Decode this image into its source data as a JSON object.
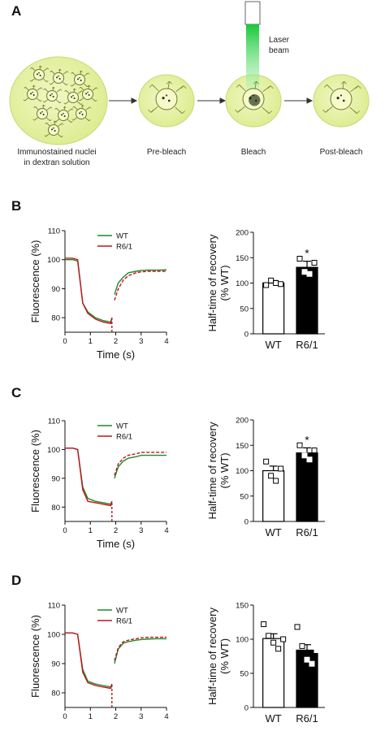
{
  "panel_a": {
    "letter": "A",
    "laser_label": [
      "Laser",
      "beam"
    ],
    "stages": [
      {
        "label": [
          "Immunostained nuclei",
          "in dextran solution"
        ]
      },
      {
        "label": [
          "Pre-bleach"
        ]
      },
      {
        "label": [
          "Bleach"
        ]
      },
      {
        "label": [
          "Post-bleach"
        ]
      }
    ]
  },
  "colors": {
    "wt": "#1e8a2a",
    "r61": "#c0141c",
    "blob": "#e8f2a8",
    "blob_edge": "#c6dc6e",
    "laser": "#2fd24a"
  },
  "chart_data": [
    {
      "panel": "B",
      "type": "line",
      "ylabel": "Fluorescence (%)",
      "xlabel": "Time (s)",
      "xlim": [
        0,
        4
      ],
      "ylim": [
        75,
        110
      ],
      "xticks": [
        "0",
        "1",
        "2",
        "3",
        "4"
      ],
      "yticks": [
        "80",
        "90",
        "100",
        "110"
      ],
      "grid": false,
      "legend": "top-left",
      "series": [
        {
          "name": "WT",
          "x": [
            0,
            0.3,
            0.5,
            0.7,
            0.9,
            1.2,
            1.5,
            1.8,
            1.85,
            1.95,
            2.1,
            2.3,
            2.5,
            2.8,
            3.0,
            3.3,
            3.6,
            4.0
          ],
          "y": [
            100,
            100,
            99.5,
            85,
            82,
            80,
            79,
            78.5,
            80,
            88,
            92,
            94,
            95.5,
            96,
            96.3,
            96.4,
            96.4,
            96.5
          ]
        },
        {
          "name": "R6/1",
          "x": [
            0,
            0.3,
            0.5,
            0.7,
            0.9,
            1.2,
            1.5,
            1.8,
            1.85,
            1.95,
            2.1,
            2.3,
            2.5,
            2.8,
            3.0,
            3.3,
            3.6,
            4.0
          ],
          "y": [
            100.5,
            100.5,
            100,
            85,
            81.5,
            79.5,
            78.5,
            78,
            80,
            86,
            90,
            93,
            94.5,
            95.5,
            95.8,
            96,
            96,
            96
          ]
        }
      ]
    },
    {
      "panel": "B",
      "type": "bar",
      "ylabel": "Half-time of recovery\n(% WT)",
      "categories": [
        "WT",
        "R6/1"
      ],
      "values": [
        100,
        131
      ],
      "errors": [
        5,
        12
      ],
      "ylim": [
        0,
        200
      ],
      "yticks": [
        "0",
        "50",
        "100",
        "150",
        "200"
      ],
      "points": [
        [
          96,
          105,
          100,
          98
        ],
        [
          148,
          122,
          118,
          140
        ]
      ],
      "annotations": [
        "",
        "*"
      ]
    },
    {
      "panel": "C",
      "type": "line",
      "ylabel": "Fluorescence (%)",
      "xlabel": "Time (s)",
      "xlim": [
        0,
        4
      ],
      "ylim": [
        75,
        110
      ],
      "xticks": [
        "0",
        "1",
        "2",
        "3",
        "4"
      ],
      "yticks": [
        "80",
        "90",
        "100",
        "110"
      ],
      "grid": false,
      "legend": "top-left",
      "series": [
        {
          "name": "WT",
          "x": [
            0,
            0.3,
            0.5,
            0.7,
            0.9,
            1.2,
            1.5,
            1.8,
            1.85,
            1.95,
            2.1,
            2.3,
            2.5,
            2.8,
            3.0,
            3.3,
            3.6,
            4.0
          ],
          "y": [
            100.5,
            100.5,
            100,
            87,
            83,
            82,
            81.5,
            81,
            82,
            90,
            94,
            96,
            97,
            97.5,
            98,
            98,
            98,
            98
          ]
        },
        {
          "name": "R6/1",
          "x": [
            0,
            0.3,
            0.5,
            0.7,
            0.9,
            1.2,
            1.5,
            1.8,
            1.85,
            1.95,
            2.1,
            2.3,
            2.5,
            2.8,
            3.0,
            3.3,
            3.6,
            4.0
          ],
          "y": [
            100.5,
            100.5,
            100,
            86,
            82,
            81.5,
            81,
            80.5,
            82,
            91,
            95,
            97,
            98,
            98.5,
            99,
            99,
            99,
            99
          ]
        }
      ]
    },
    {
      "panel": "C",
      "type": "bar",
      "ylabel": "Half-time of recovery\n(% WT)",
      "categories": [
        "WT",
        "R6/1"
      ],
      "values": [
        100,
        135
      ],
      "errors": [
        9,
        10
      ],
      "ylim": [
        0,
        200
      ],
      "yticks": [
        "0",
        "50",
        "100",
        "150",
        "200"
      ],
      "points": [
        [
          118,
          90,
          80,
          104
        ],
        [
          150,
          130,
          122,
          140
        ]
      ],
      "annotations": [
        "",
        "*"
      ]
    },
    {
      "panel": "D",
      "type": "line",
      "ylabel": "Fluorescence (%)",
      "xlabel": "",
      "xlim": [
        0,
        4
      ],
      "ylim": [
        75,
        110
      ],
      "xticks": [
        "0",
        "1",
        "2",
        "3",
        "4"
      ],
      "yticks": [
        "80",
        "90",
        "100",
        "110"
      ],
      "grid": false,
      "legend": "top-left",
      "series": [
        {
          "name": "WT",
          "x": [
            0,
            0.3,
            0.5,
            0.7,
            0.9,
            1.2,
            1.5,
            1.8,
            1.85,
            1.95,
            2.1,
            2.3,
            2.5,
            2.8,
            3.0,
            3.3,
            3.6,
            4.0
          ],
          "y": [
            100.5,
            100.5,
            100,
            88,
            84,
            83,
            82.5,
            82,
            83,
            90,
            95,
            97,
            97.5,
            98,
            98.2,
            98.4,
            98.5,
            98.5
          ]
        },
        {
          "name": "R6/1",
          "x": [
            0,
            0.3,
            0.5,
            0.7,
            0.9,
            1.2,
            1.5,
            1.8,
            1.85,
            1.95,
            2.1,
            2.3,
            2.5,
            2.8,
            3.0,
            3.3,
            3.6,
            4.0
          ],
          "y": [
            100.5,
            100.5,
            100,
            87,
            83.5,
            82.5,
            82,
            81.5,
            83,
            91,
            95.5,
            97.5,
            98,
            98.5,
            98.8,
            99,
            99,
            99
          ]
        }
      ]
    },
    {
      "panel": "D",
      "type": "bar",
      "ylabel": "Half-time of recovery\n(% WT)",
      "categories": [
        "WT",
        "R6/1"
      ],
      "values": [
        101,
        84
      ],
      "errors": [
        7,
        8
      ],
      "ylim": [
        0,
        150
      ],
      "yticks": [
        "0",
        "50",
        "100",
        "150"
      ],
      "points": [
        [
          122,
          105,
          95,
          86,
          100
        ],
        [
          118,
          90,
          70,
          64,
          84
        ]
      ],
      "annotations": [
        "",
        ""
      ]
    }
  ]
}
